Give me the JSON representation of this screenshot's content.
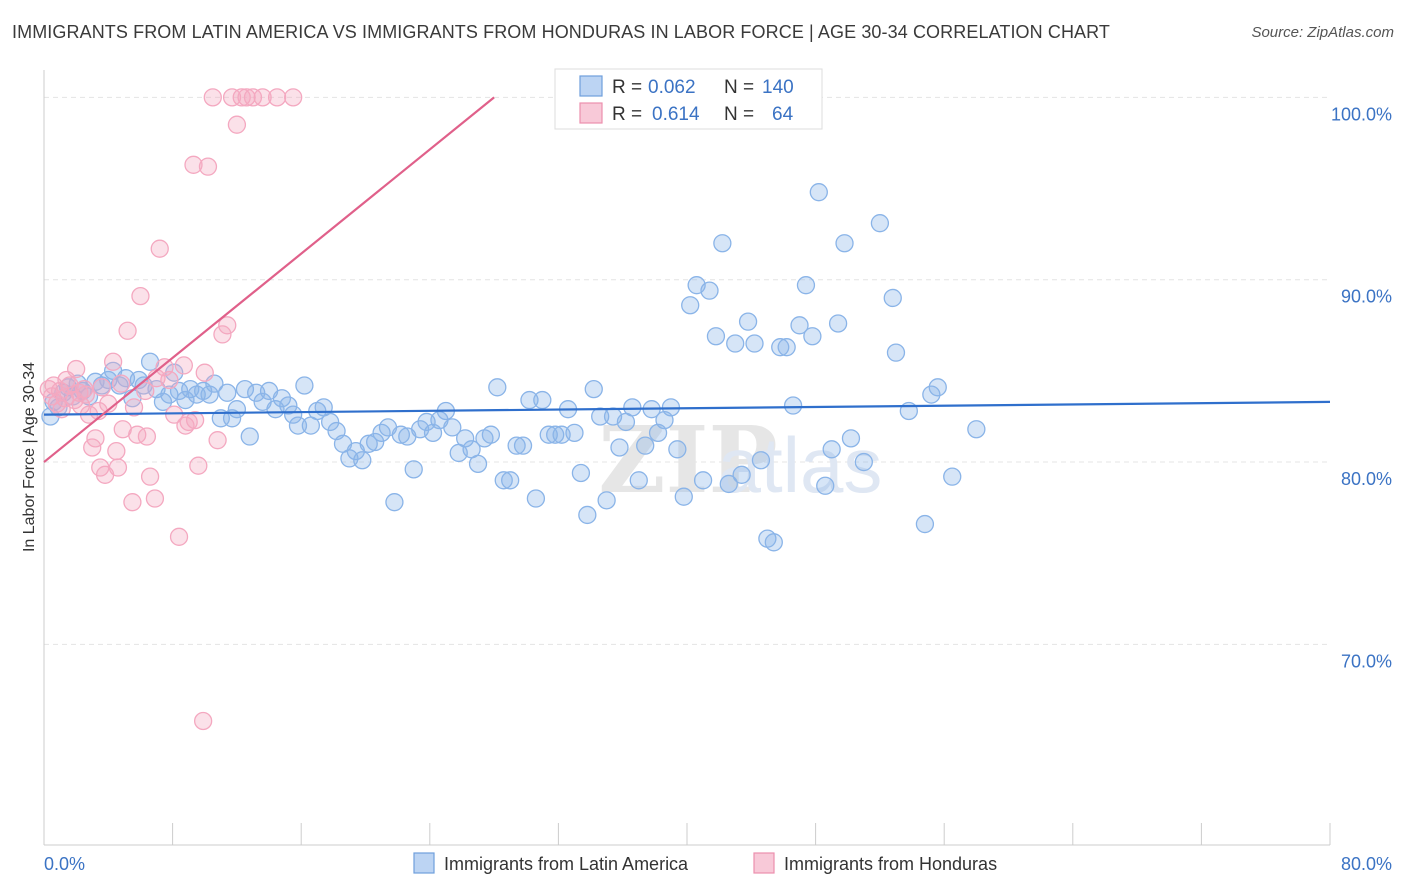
{
  "title": "IMMIGRANTS FROM LATIN AMERICA VS IMMIGRANTS FROM HONDURAS IN LABOR FORCE | AGE 30-34 CORRELATION CHART",
  "source": "Source: ZipAtlas.com",
  "watermark": "ZIPatlas",
  "legend_stats": [
    {
      "r_label": "R =",
      "r": "0.062",
      "n_label": "N =",
      "n": "140"
    },
    {
      "r_label": "R =",
      "r": "0.614",
      "n_label": "N =",
      "n": "64"
    }
  ],
  "bottom_legend": [
    "Immigrants from Latin America",
    "Immigrants from Honduras"
  ],
  "chart_data": {
    "type": "scatter",
    "title": "IMMIGRANTS FROM LATIN AMERICA VS IMMIGRANTS FROM HONDURAS IN LABOR FORCE | AGE 30-34 CORRELATION CHART",
    "xlabel": "",
    "ylabel": "In Labor Force | Age 30-34",
    "xlim": [
      0,
      80
    ],
    "ylim": [
      59,
      101.5
    ],
    "x_tick_labels": [
      "0.0%",
      "80.0%"
    ],
    "y_ticks": [
      70,
      80,
      90,
      100
    ],
    "y_tick_labels": [
      "70.0%",
      "80.0%",
      "90.0%",
      "100.0%"
    ],
    "grid": true,
    "legend_position": "top-center",
    "series": [
      {
        "name": "Immigrants from Latin America",
        "color": "#8ab4e8",
        "line_color": "#2f6fcc",
        "trend": {
          "x": [
            0,
            80
          ],
          "y": [
            82.6,
            83.3
          ]
        },
        "points": [
          [
            0.4,
            82.5
          ],
          [
            0.6,
            83.3
          ],
          [
            0.9,
            83.0
          ],
          [
            1.2,
            83.8
          ],
          [
            1.5,
            84.1
          ],
          [
            1.8,
            83.6
          ],
          [
            2.1,
            84.3
          ],
          [
            2.4,
            83.9
          ],
          [
            2.8,
            83.6
          ],
          [
            3.2,
            84.4
          ],
          [
            3.6,
            84.2
          ],
          [
            4.0,
            84.5
          ],
          [
            4.3,
            85.0
          ],
          [
            4.7,
            84.2
          ],
          [
            5.1,
            84.6
          ],
          [
            5.5,
            83.5
          ],
          [
            5.9,
            84.5
          ],
          [
            6.2,
            84.2
          ],
          [
            6.6,
            85.5
          ],
          [
            7.0,
            84.0
          ],
          [
            7.4,
            83.3
          ],
          [
            7.8,
            83.7
          ],
          [
            8.1,
            84.9
          ],
          [
            8.4,
            83.9
          ],
          [
            8.8,
            83.4
          ],
          [
            9.1,
            84.0
          ],
          [
            9.5,
            83.7
          ],
          [
            9.9,
            83.9
          ],
          [
            10.3,
            83.7
          ],
          [
            10.6,
            84.3
          ],
          [
            11.0,
            82.4
          ],
          [
            11.4,
            83.8
          ],
          [
            11.7,
            82.4
          ],
          [
            12.0,
            82.9
          ],
          [
            12.5,
            84.0
          ],
          [
            12.8,
            81.4
          ],
          [
            13.2,
            83.8
          ],
          [
            13.6,
            83.3
          ],
          [
            14.0,
            83.9
          ],
          [
            14.4,
            82.9
          ],
          [
            14.8,
            83.5
          ],
          [
            15.2,
            83.1
          ],
          [
            15.5,
            82.6
          ],
          [
            15.8,
            82.0
          ],
          [
            16.2,
            84.2
          ],
          [
            16.6,
            82.0
          ],
          [
            17.0,
            82.8
          ],
          [
            17.4,
            83.0
          ],
          [
            17.8,
            82.2
          ],
          [
            18.2,
            81.7
          ],
          [
            18.6,
            81.0
          ],
          [
            19.0,
            80.2
          ],
          [
            19.4,
            80.6
          ],
          [
            19.8,
            80.1
          ],
          [
            20.2,
            81.0
          ],
          [
            20.6,
            81.1
          ],
          [
            21.0,
            81.6
          ],
          [
            21.4,
            81.9
          ],
          [
            21.8,
            77.8
          ],
          [
            22.2,
            81.5
          ],
          [
            22.6,
            81.4
          ],
          [
            23.0,
            79.6
          ],
          [
            23.4,
            81.8
          ],
          [
            23.8,
            82.2
          ],
          [
            24.2,
            81.6
          ],
          [
            24.6,
            82.3
          ],
          [
            25.0,
            82.8
          ],
          [
            25.4,
            81.9
          ],
          [
            25.8,
            80.5
          ],
          [
            26.2,
            81.3
          ],
          [
            26.6,
            80.7
          ],
          [
            27.0,
            79.9
          ],
          [
            27.4,
            81.3
          ],
          [
            27.8,
            81.5
          ],
          [
            28.2,
            84.1
          ],
          [
            28.6,
            79.0
          ],
          [
            29.0,
            79.0
          ],
          [
            29.4,
            80.9
          ],
          [
            29.8,
            80.9
          ],
          [
            30.2,
            83.4
          ],
          [
            30.6,
            78.0
          ],
          [
            31.0,
            83.4
          ],
          [
            31.4,
            81.5
          ],
          [
            31.8,
            81.5
          ],
          [
            32.2,
            81.5
          ],
          [
            32.6,
            82.9
          ],
          [
            33.0,
            81.6
          ],
          [
            33.4,
            79.4
          ],
          [
            33.8,
            77.1
          ],
          [
            34.2,
            84.0
          ],
          [
            34.6,
            82.5
          ],
          [
            35.0,
            77.9
          ],
          [
            35.4,
            82.5
          ],
          [
            35.8,
            80.8
          ],
          [
            36.2,
            82.2
          ],
          [
            36.6,
            83.0
          ],
          [
            37.0,
            79.0
          ],
          [
            37.4,
            80.9
          ],
          [
            37.8,
            82.9
          ],
          [
            38.2,
            81.6
          ],
          [
            38.6,
            82.3
          ],
          [
            39.0,
            83.0
          ],
          [
            39.4,
            80.7
          ],
          [
            39.8,
            78.1
          ],
          [
            40.2,
            88.6
          ],
          [
            40.6,
            89.7
          ],
          [
            41.0,
            79.0
          ],
          [
            41.4,
            89.4
          ],
          [
            41.8,
            86.9
          ],
          [
            42.2,
            92.0
          ],
          [
            42.6,
            78.8
          ],
          [
            43.0,
            86.5
          ],
          [
            43.4,
            79.3
          ],
          [
            43.8,
            87.7
          ],
          [
            44.2,
            86.5
          ],
          [
            44.6,
            80.1
          ],
          [
            45.0,
            75.8
          ],
          [
            45.4,
            75.6
          ],
          [
            45.8,
            86.3
          ],
          [
            46.2,
            86.3
          ],
          [
            46.6,
            83.1
          ],
          [
            47.0,
            87.5
          ],
          [
            47.4,
            89.7
          ],
          [
            47.8,
            86.9
          ],
          [
            48.2,
            94.8
          ],
          [
            48.6,
            78.7
          ],
          [
            49.0,
            80.7
          ],
          [
            49.4,
            87.6
          ],
          [
            49.8,
            92.0
          ],
          [
            50.2,
            81.3
          ],
          [
            51.0,
            80.0
          ],
          [
            52.0,
            93.1
          ],
          [
            52.8,
            89.0
          ],
          [
            53.0,
            86.0
          ],
          [
            53.8,
            82.8
          ],
          [
            54.8,
            76.6
          ],
          [
            55.2,
            83.7
          ],
          [
            55.6,
            84.1
          ],
          [
            56.5,
            79.2
          ],
          [
            58.0,
            81.8
          ]
        ]
      },
      {
        "name": "Immigrants from Honduras",
        "color": "#f4a8c0",
        "line_color": "#e0608a",
        "trend": {
          "x": [
            0,
            28
          ],
          "y": [
            80.0,
            100.0
          ]
        },
        "points": [
          [
            0.3,
            84.0
          ],
          [
            0.5,
            83.6
          ],
          [
            0.8,
            83.2
          ],
          [
            1.0,
            83.9
          ],
          [
            1.3,
            83.5
          ],
          [
            1.6,
            84.2
          ],
          [
            1.9,
            83.4
          ],
          [
            2.2,
            83.8
          ],
          [
            2.5,
            84.0
          ],
          [
            2.8,
            82.6
          ],
          [
            3.0,
            80.8
          ],
          [
            3.2,
            81.3
          ],
          [
            3.5,
            79.7
          ],
          [
            3.8,
            79.3
          ],
          [
            4.0,
            83.2
          ],
          [
            4.3,
            85.5
          ],
          [
            4.6,
            79.7
          ],
          [
            4.9,
            81.8
          ],
          [
            5.2,
            87.2
          ],
          [
            5.5,
            77.8
          ],
          [
            5.8,
            81.5
          ],
          [
            6.0,
            89.1
          ],
          [
            6.3,
            83.9
          ],
          [
            6.6,
            79.2
          ],
          [
            6.9,
            78.0
          ],
          [
            7.2,
            91.7
          ],
          [
            7.5,
            85.2
          ],
          [
            7.8,
            84.5
          ],
          [
            8.1,
            82.6
          ],
          [
            8.4,
            75.9
          ],
          [
            8.7,
            85.3
          ],
          [
            9.0,
            82.2
          ],
          [
            9.3,
            96.3
          ],
          [
            9.6,
            79.8
          ],
          [
            9.9,
            65.8
          ],
          [
            10.2,
            96.2
          ],
          [
            10.5,
            100.0
          ],
          [
            10.8,
            81.2
          ],
          [
            11.1,
            87.0
          ],
          [
            11.4,
            87.5
          ],
          [
            11.7,
            100.0
          ],
          [
            12.0,
            98.5
          ],
          [
            12.3,
            100.0
          ],
          [
            12.6,
            100.0
          ],
          [
            13.0,
            100.0
          ],
          [
            13.6,
            100.0
          ],
          [
            14.5,
            100.0
          ],
          [
            15.5,
            100.0
          ],
          [
            0.6,
            84.2
          ],
          [
            1.1,
            82.9
          ],
          [
            2.0,
            85.1
          ],
          [
            2.6,
            83.7
          ],
          [
            3.4,
            82.8
          ],
          [
            4.8,
            84.3
          ],
          [
            5.6,
            83.0
          ],
          [
            6.4,
            81.4
          ],
          [
            7.0,
            84.6
          ],
          [
            8.8,
            82.0
          ],
          [
            9.4,
            82.3
          ],
          [
            10.0,
            84.9
          ],
          [
            1.4,
            84.5
          ],
          [
            2.3,
            83.1
          ],
          [
            3.6,
            84.1
          ],
          [
            4.5,
            80.6
          ]
        ]
      }
    ]
  }
}
